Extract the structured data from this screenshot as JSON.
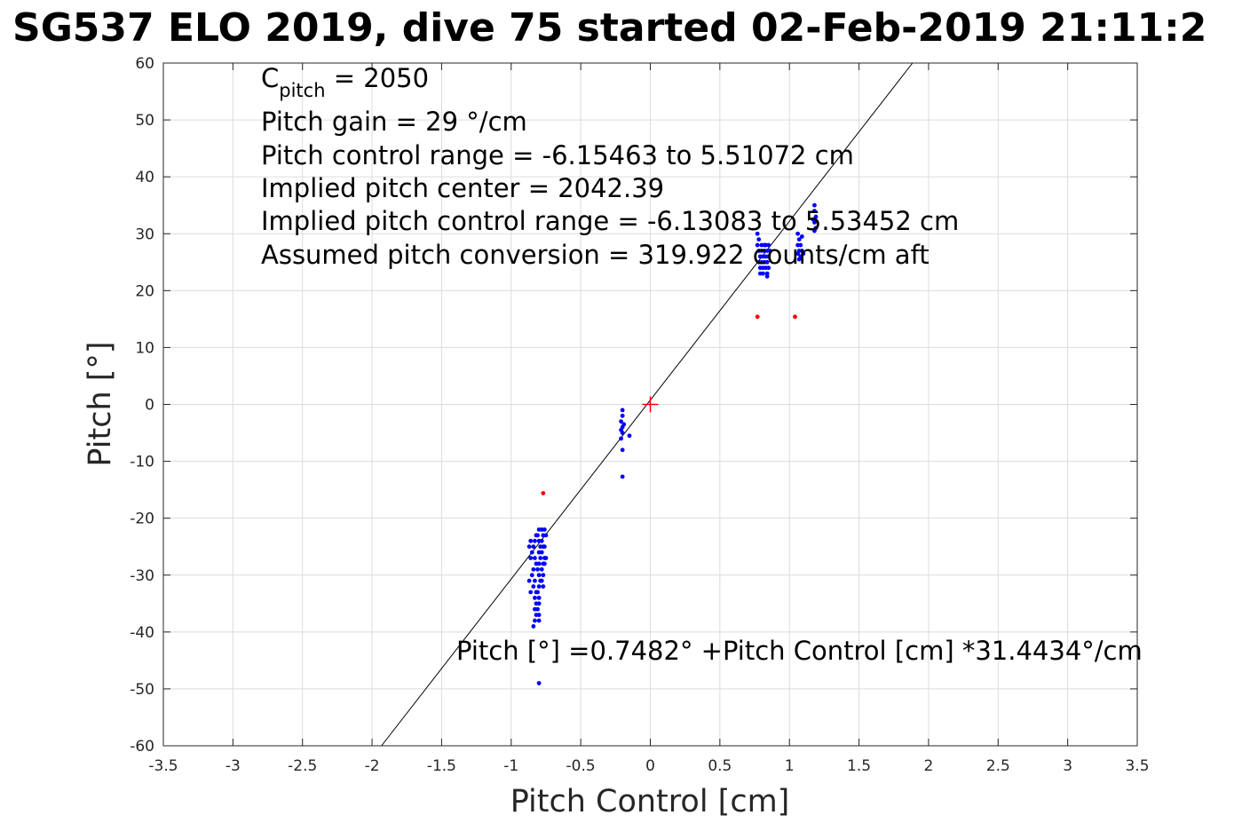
{
  "chart_data": {
    "type": "scatter",
    "title": "SG537 ELO 2019, dive 75 started 02-Feb-2019 21:11:2",
    "xlabel": "Pitch Control [cm]",
    "ylabel": "Pitch [°]",
    "xlim": [
      -3.5,
      3.5
    ],
    "ylim": [
      -60,
      60
    ],
    "xticks": [
      -3.5,
      -3,
      -2.5,
      -2,
      -1.5,
      -1,
      -0.5,
      0,
      0.5,
      1,
      1.5,
      2,
      2.5,
      3,
      3.5
    ],
    "xtick_labels": [
      "-3.5",
      "-3",
      "-2.5",
      "-2",
      "-1.5",
      "-1",
      "-0.5",
      "0",
      "0.5",
      "1",
      "1.5",
      "2",
      "2.5",
      "3",
      "3.5"
    ],
    "yticks": [
      -60,
      -50,
      -40,
      -30,
      -20,
      -10,
      0,
      10,
      20,
      30,
      40,
      50,
      60
    ],
    "ytick_labels": [
      "-60",
      "-50",
      "-40",
      "-30",
      "-20",
      "-10",
      "0",
      "10",
      "20",
      "30",
      "40",
      "50",
      "60"
    ],
    "grid": true,
    "annotations": {
      "cpitch_prefix": "C",
      "cpitch_sub": "pitch",
      "cpitch_value": " = 2050",
      "gain": "Pitch gain = 29 °/cm",
      "range": "Pitch control range = -6.15463 to 5.51072 cm",
      "center": "Implied pitch center = 2042.39",
      "implied_range": "Implied pitch control range = -6.13083 to 5.53452 cm",
      "conversion": "Assumed pitch conversion = 319.922 counts/cm aft",
      "fit": "Pitch [°] =0.7482° +Pitch Control [cm] *31.4434°/cm"
    },
    "fit_line": {
      "intercept": 0.7482,
      "slope": 31.4434,
      "color": "#000000"
    },
    "center_marker": {
      "x": 0,
      "y": 0,
      "color": "#ff0000"
    },
    "series": [
      {
        "color": "#0000ff",
        "points": [
          [
            -0.8,
            -22
          ],
          [
            -0.81,
            -23
          ],
          [
            -0.8,
            -24
          ],
          [
            -0.79,
            -25
          ],
          [
            -0.8,
            -26
          ],
          [
            -0.79,
            -27
          ],
          [
            -0.8,
            -28
          ],
          [
            -0.81,
            -29
          ],
          [
            -0.8,
            -30
          ],
          [
            -0.79,
            -31
          ],
          [
            -0.8,
            -32
          ],
          [
            -0.81,
            -33
          ],
          [
            -0.8,
            -34
          ],
          [
            -0.8,
            -35
          ],
          [
            -0.81,
            -36
          ],
          [
            -0.8,
            -37
          ],
          [
            -0.8,
            -38
          ],
          [
            -0.82,
            -23
          ],
          [
            -0.83,
            -24
          ],
          [
            -0.84,
            -25
          ],
          [
            -0.85,
            -26
          ],
          [
            -0.83,
            -27
          ],
          [
            -0.82,
            -28
          ],
          [
            -0.84,
            -29
          ],
          [
            -0.85,
            -30
          ],
          [
            -0.83,
            -31
          ],
          [
            -0.84,
            -32
          ],
          [
            -0.82,
            -33
          ],
          [
            -0.83,
            -34
          ],
          [
            -0.82,
            -35
          ],
          [
            -0.83,
            -36
          ],
          [
            -0.82,
            -37
          ],
          [
            -0.83,
            -38
          ],
          [
            -0.84,
            -39
          ],
          [
            -0.78,
            -22
          ],
          [
            -0.77,
            -23
          ],
          [
            -0.78,
            -24
          ],
          [
            -0.77,
            -25
          ],
          [
            -0.78,
            -26
          ],
          [
            -0.76,
            -27
          ],
          [
            -0.77,
            -28
          ],
          [
            -0.78,
            -29
          ],
          [
            -0.77,
            -30
          ],
          [
            -0.78,
            -31
          ],
          [
            -0.77,
            -32
          ],
          [
            -0.76,
            -22
          ],
          [
            -0.75,
            -23
          ],
          [
            -0.76,
            -25
          ],
          [
            -0.75,
            -27
          ],
          [
            -0.76,
            -28
          ],
          [
            -0.86,
            -24
          ],
          [
            -0.87,
            -25
          ],
          [
            -0.86,
            -27
          ],
          [
            -0.87,
            -31
          ],
          [
            -0.86,
            -33
          ],
          [
            -0.8,
            -49
          ],
          [
            -0.2,
            -1
          ],
          [
            -0.2,
            -2
          ],
          [
            -0.21,
            -3
          ],
          [
            -0.2,
            -4
          ],
          [
            -0.21,
            -4.5
          ],
          [
            -0.2,
            -5
          ],
          [
            -0.21,
            -6
          ],
          [
            -0.2,
            -8
          ],
          [
            -0.2,
            -12.7
          ],
          [
            -0.15,
            -5.5
          ],
          [
            -0.19,
            -3.5
          ],
          [
            0.77,
            30
          ],
          [
            0.78,
            29
          ],
          [
            0.77,
            28
          ],
          [
            0.78,
            27
          ],
          [
            0.79,
            26
          ],
          [
            0.78,
            25
          ],
          [
            0.79,
            24
          ],
          [
            0.8,
            28
          ],
          [
            0.8,
            27
          ],
          [
            0.81,
            26
          ],
          [
            0.8,
            25
          ],
          [
            0.81,
            24
          ],
          [
            0.82,
            28
          ],
          [
            0.82,
            27
          ],
          [
            0.83,
            26
          ],
          [
            0.82,
            25
          ],
          [
            0.83,
            24
          ],
          [
            0.84,
            23
          ],
          [
            0.84,
            22.5
          ],
          [
            0.83,
            28
          ],
          [
            0.84,
            27
          ],
          [
            0.85,
            26
          ],
          [
            0.84,
            25
          ],
          [
            0.85,
            28
          ],
          [
            0.86,
            27
          ],
          [
            0.85,
            24
          ],
          [
            0.81,
            23
          ],
          [
            0.79,
            23
          ],
          [
            1.06,
            30
          ],
          [
            1.07,
            29
          ],
          [
            1.06,
            28
          ],
          [
            1.07,
            27
          ],
          [
            1.08,
            26
          ],
          [
            1.07,
            25.5
          ],
          [
            1.06,
            26.5
          ],
          [
            1.08,
            28
          ],
          [
            1.09,
            29.5
          ],
          [
            1.09,
            27
          ],
          [
            1.1,
            26.5
          ],
          [
            1.18,
            35
          ],
          [
            1.18,
            34
          ],
          [
            1.19,
            33
          ],
          [
            1.18,
            32
          ],
          [
            1.19,
            31
          ],
          [
            1.18,
            30.5
          ],
          [
            1.17,
            32.5
          ]
        ]
      },
      {
        "color": "#ff0000",
        "points": [
          [
            -0.77,
            -15.6
          ],
          [
            0.77,
            15.4
          ],
          [
            1.04,
            15.4
          ]
        ]
      }
    ]
  }
}
